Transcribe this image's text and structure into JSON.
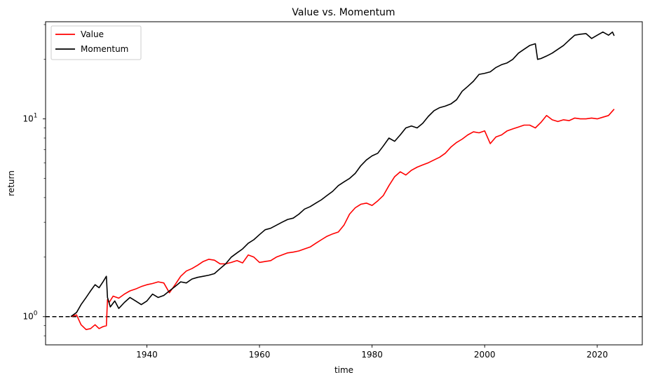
{
  "chart_data": {
    "type": "line",
    "title": "Value vs. Momentum",
    "xlabel": "time",
    "ylabel": "return",
    "y_scale": "log",
    "xlim": [
      1922,
      2028
    ],
    "ylim": [
      0.72,
      31
    ],
    "grid": false,
    "legend_position": "top-left",
    "x_ticks": [
      1940,
      1960,
      1980,
      2000,
      2020
    ],
    "y_ticks": [
      {
        "value": 1,
        "base": "10",
        "exponent": "0"
      },
      {
        "value": 10,
        "base": "10",
        "exponent": "1"
      }
    ],
    "reference_line": {
      "y": 1,
      "style": "dashed",
      "color": "#000000"
    },
    "series": [
      {
        "name": "Value",
        "color": "#ff0000",
        "x": [
          1926.5,
          1927.5,
          1928.3,
          1929.2,
          1930.0,
          1930.8,
          1931.5,
          1932.2,
          1932.8,
          1933.0,
          1933.3,
          1934.0,
          1935.0,
          1936.0,
          1937.0,
          1938.0,
          1939.0,
          1940.0,
          1941.0,
          1942.0,
          1943.0,
          1944.0,
          1945.0,
          1946.0,
          1947.0,
          1948.0,
          1949.0,
          1950.0,
          1951.0,
          1952.0,
          1953.0,
          1954.0,
          1955.0,
          1956.0,
          1957.0,
          1958.0,
          1959.0,
          1960.0,
          1961.0,
          1962.0,
          1963.0,
          1964.0,
          1965.0,
          1966.0,
          1967.0,
          1968.0,
          1969.0,
          1970.0,
          1971.0,
          1972.0,
          1973.0,
          1974.0,
          1975.0,
          1976.0,
          1977.0,
          1978.0,
          1979.0,
          1980.0,
          1981.0,
          1982.0,
          1983.0,
          1984.0,
          1985.0,
          1986.0,
          1987.0,
          1988.0,
          1989.0,
          1990.0,
          1991.0,
          1992.0,
          1993.0,
          1994.0,
          1995.0,
          1996.0,
          1997.0,
          1998.0,
          1999.0,
          2000.0,
          2001.0,
          2002.0,
          2003.0,
          2004.0,
          2005.0,
          2006.0,
          2007.0,
          2008.0,
          2009.0,
          2010.0,
          2011.0,
          2012.0,
          2013.0,
          2014.0,
          2015.0,
          2016.0,
          2017.0,
          2018.0,
          2019.0,
          2020.0,
          2021.0,
          2022.0,
          2023.0
        ],
        "values": [
          1.0,
          1.02,
          0.91,
          0.86,
          0.87,
          0.91,
          0.87,
          0.89,
          0.9,
          1.22,
          1.18,
          1.27,
          1.24,
          1.3,
          1.35,
          1.38,
          1.42,
          1.45,
          1.47,
          1.5,
          1.48,
          1.32,
          1.45,
          1.6,
          1.7,
          1.75,
          1.82,
          1.9,
          1.95,
          1.93,
          1.85,
          1.85,
          1.88,
          1.92,
          1.87,
          2.05,
          2.0,
          1.88,
          1.9,
          1.92,
          2.0,
          2.05,
          2.1,
          2.12,
          2.15,
          2.2,
          2.25,
          2.35,
          2.45,
          2.55,
          2.62,
          2.68,
          2.9,
          3.3,
          3.55,
          3.7,
          3.75,
          3.65,
          3.85,
          4.1,
          4.6,
          5.1,
          5.4,
          5.2,
          5.5,
          5.7,
          5.85,
          6.0,
          6.2,
          6.4,
          6.7,
          7.2,
          7.6,
          7.9,
          8.3,
          8.6,
          8.5,
          8.7,
          7.5,
          8.1,
          8.3,
          8.7,
          8.9,
          9.1,
          9.3,
          9.3,
          9.0,
          9.6,
          10.4,
          9.9,
          9.7,
          9.9,
          9.8,
          10.1,
          10.0,
          10.0,
          10.1,
          10.0,
          10.2,
          10.4,
          11.2
        ]
      },
      {
        "name": "Momentum",
        "color": "#000000",
        "x": [
          1926.5,
          1927.5,
          1928.3,
          1929.2,
          1930.0,
          1930.8,
          1931.5,
          1932.2,
          1932.8,
          1933.0,
          1933.5,
          1934.3,
          1935.0,
          1936.0,
          1937.0,
          1938.0,
          1939.0,
          1940.0,
          1941.0,
          1942.0,
          1943.0,
          1944.0,
          1945.0,
          1946.0,
          1947.0,
          1948.0,
          1949.0,
          1950.0,
          1951.0,
          1952.0,
          1953.0,
          1954.0,
          1955.0,
          1956.0,
          1957.0,
          1958.0,
          1959.0,
          1960.0,
          1961.0,
          1962.0,
          1963.0,
          1964.0,
          1965.0,
          1966.0,
          1967.0,
          1968.0,
          1969.0,
          1970.0,
          1971.0,
          1972.0,
          1973.0,
          1974.0,
          1975.0,
          1976.0,
          1977.0,
          1978.0,
          1979.0,
          1980.0,
          1981.0,
          1982.0,
          1983.0,
          1984.0,
          1985.0,
          1986.0,
          1987.0,
          1988.0,
          1989.0,
          1990.0,
          1991.0,
          1992.0,
          1993.0,
          1994.0,
          1995.0,
          1996.0,
          1997.0,
          1998.0,
          1999.0,
          2000.0,
          2001.0,
          2002.0,
          2003.0,
          2004.0,
          2005.0,
          2006.0,
          2007.0,
          2008.0,
          2009.0,
          2009.4,
          2010.0,
          2011.0,
          2012.0,
          2013.0,
          2014.0,
          2015.0,
          2016.0,
          2017.0,
          2018.0,
          2019.0,
          2020.0,
          2021.0,
          2022.0,
          2022.7,
          2023.0
        ],
        "values": [
          1.0,
          1.05,
          1.15,
          1.25,
          1.35,
          1.45,
          1.4,
          1.5,
          1.6,
          1.25,
          1.12,
          1.2,
          1.1,
          1.18,
          1.25,
          1.2,
          1.15,
          1.2,
          1.3,
          1.25,
          1.28,
          1.35,
          1.42,
          1.5,
          1.48,
          1.55,
          1.58,
          1.6,
          1.62,
          1.65,
          1.75,
          1.85,
          2.0,
          2.1,
          2.2,
          2.35,
          2.45,
          2.6,
          2.75,
          2.8,
          2.9,
          3.0,
          3.1,
          3.15,
          3.3,
          3.5,
          3.6,
          3.75,
          3.9,
          4.1,
          4.3,
          4.6,
          4.8,
          5.0,
          5.3,
          5.8,
          6.2,
          6.5,
          6.7,
          7.3,
          8.0,
          7.7,
          8.3,
          9.0,
          9.2,
          9.0,
          9.5,
          10.3,
          11.0,
          11.4,
          11.6,
          11.9,
          12.5,
          13.8,
          14.6,
          15.5,
          16.8,
          17.0,
          17.3,
          18.2,
          18.8,
          19.2,
          20.0,
          21.5,
          22.5,
          23.5,
          24.0,
          20.0,
          20.2,
          20.8,
          21.5,
          22.5,
          23.5,
          25.0,
          26.5,
          26.8,
          27.0,
          25.5,
          26.5,
          27.5,
          26.5,
          27.5,
          26.3
        ]
      }
    ]
  }
}
